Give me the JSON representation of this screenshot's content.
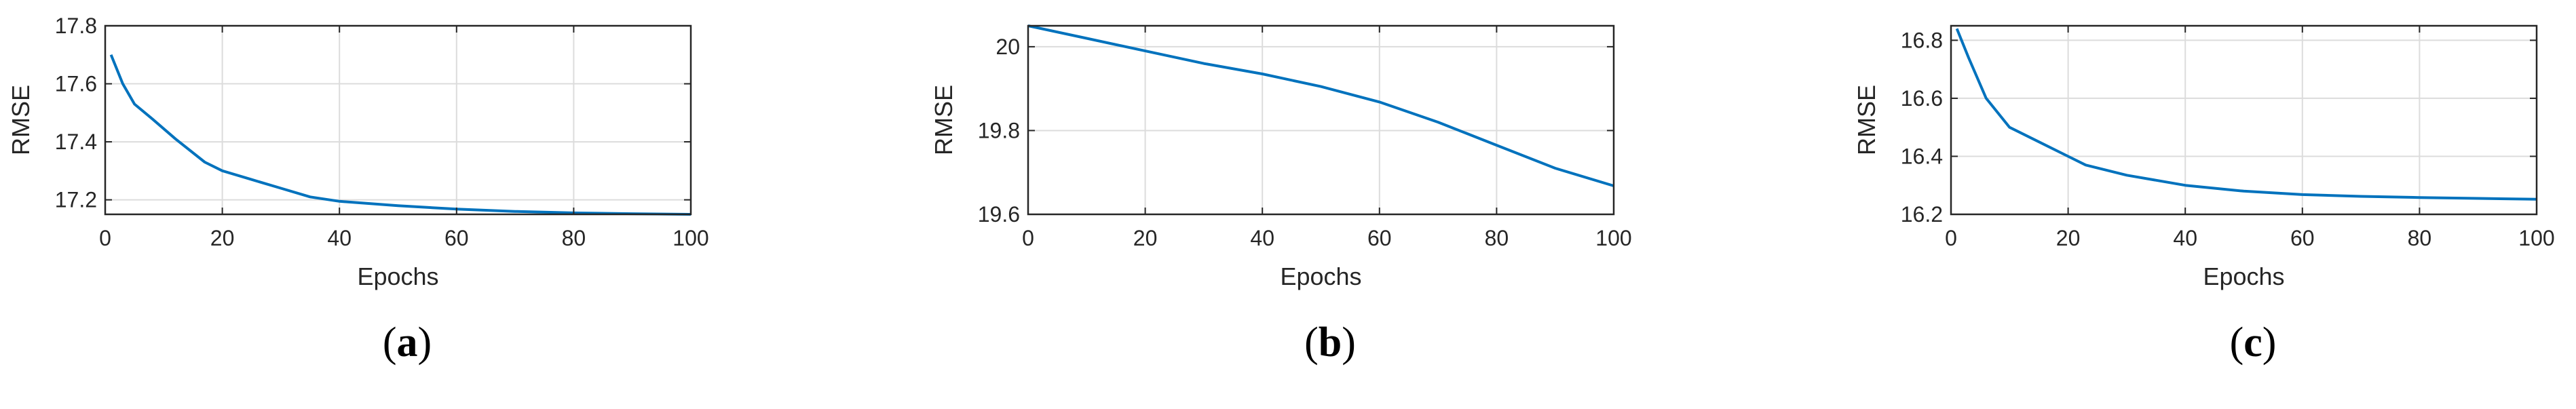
{
  "colors": {
    "line": "#0072BD",
    "grid": "#DCDCDC",
    "axis": "#262626"
  },
  "chart_data": [
    {
      "type": "line",
      "panel_label": "a",
      "xlabel": "Epochs",
      "ylabel": "RMSE",
      "xlim": [
        0,
        100
      ],
      "ylim": [
        17.15,
        17.8
      ],
      "xticks": [
        0,
        20,
        40,
        60,
        80,
        100
      ],
      "yticks": [
        17.2,
        17.4,
        17.6,
        17.8
      ],
      "ytick_labels": [
        "17.2",
        "17.4",
        "17.6",
        "17.8"
      ],
      "grid": true,
      "series": [
        {
          "x": [
            1,
            3,
            5,
            8,
            12,
            17,
            20,
            25,
            30,
            35,
            40,
            50,
            60,
            70,
            80,
            90,
            100
          ],
          "y": [
            17.7,
            17.6,
            17.53,
            17.48,
            17.41,
            17.33,
            17.3,
            17.27,
            17.24,
            17.21,
            17.195,
            17.18,
            17.168,
            17.16,
            17.155,
            17.152,
            17.15
          ]
        }
      ]
    },
    {
      "type": "line",
      "panel_label": "b",
      "xlabel": "Epochs",
      "ylabel": "RMSE",
      "xlim": [
        0,
        100
      ],
      "ylim": [
        19.6,
        20.05
      ],
      "xticks": [
        0,
        20,
        40,
        60,
        80,
        100
      ],
      "yticks": [
        19.6,
        19.8,
        20.0
      ],
      "ytick_labels": [
        "19.6",
        "19.8",
        "20"
      ],
      "grid": true,
      "series": [
        {
          "x": [
            0,
            10,
            20,
            30,
            40,
            50,
            60,
            70,
            80,
            90,
            100
          ],
          "y": [
            20.05,
            20.02,
            19.99,
            19.96,
            19.935,
            19.905,
            19.868,
            19.82,
            19.765,
            19.71,
            19.668
          ]
        }
      ]
    },
    {
      "type": "line",
      "panel_label": "c",
      "xlabel": "Epochs",
      "ylabel": "RMSE",
      "xlim": [
        0,
        100
      ],
      "ylim": [
        16.2,
        16.85
      ],
      "xticks": [
        0,
        20,
        40,
        60,
        80,
        100
      ],
      "yticks": [
        16.2,
        16.4,
        16.6,
        16.8
      ],
      "ytick_labels": [
        "16.2",
        "16.4",
        "16.6",
        "16.8"
      ],
      "grid": true,
      "series": [
        {
          "x": [
            1,
            3,
            6,
            10,
            15,
            20,
            23,
            30,
            40,
            50,
            60,
            70,
            80,
            90,
            100
          ],
          "y": [
            16.84,
            16.74,
            16.6,
            16.5,
            16.45,
            16.4,
            16.37,
            16.335,
            16.3,
            16.28,
            16.268,
            16.262,
            16.258,
            16.255,
            16.252
          ]
        }
      ]
    }
  ]
}
